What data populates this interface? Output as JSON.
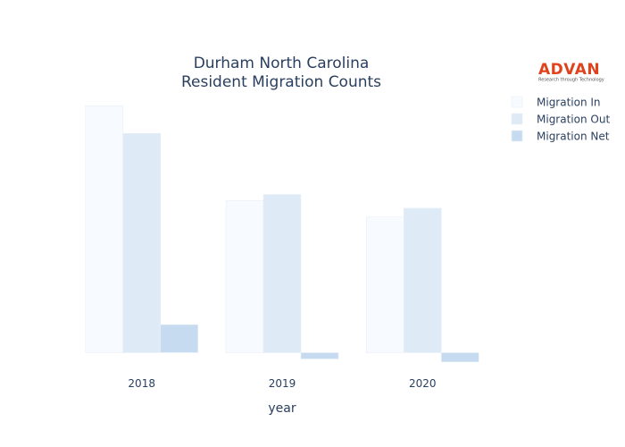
{
  "chart_data": {
    "type": "bar",
    "title": [
      "Durham North Carolina",
      "Resident Migration Counts"
    ],
    "xlabel": "year",
    "ylabel": "",
    "categories": [
      "2018",
      "2019",
      "2020"
    ],
    "series": [
      {
        "name": "Migration In",
        "values": [
          6700,
          4120,
          3680
        ],
        "color": "#f7fbff"
      },
      {
        "name": "Migration Out",
        "values": [
          5950,
          4290,
          3920
        ],
        "color": "#deebf7"
      },
      {
        "name": "Migration Net",
        "values": [
          760,
          -170,
          -250
        ],
        "color": "#c6dbef"
      }
    ],
    "ylim": [
      -280,
      6900
    ],
    "grid": false,
    "show_y_ticks": false,
    "legend_placement": "top-right"
  },
  "logo": {
    "brand": "ADVAN",
    "tagline": "Research through Technology",
    "color": "#e0421c"
  }
}
